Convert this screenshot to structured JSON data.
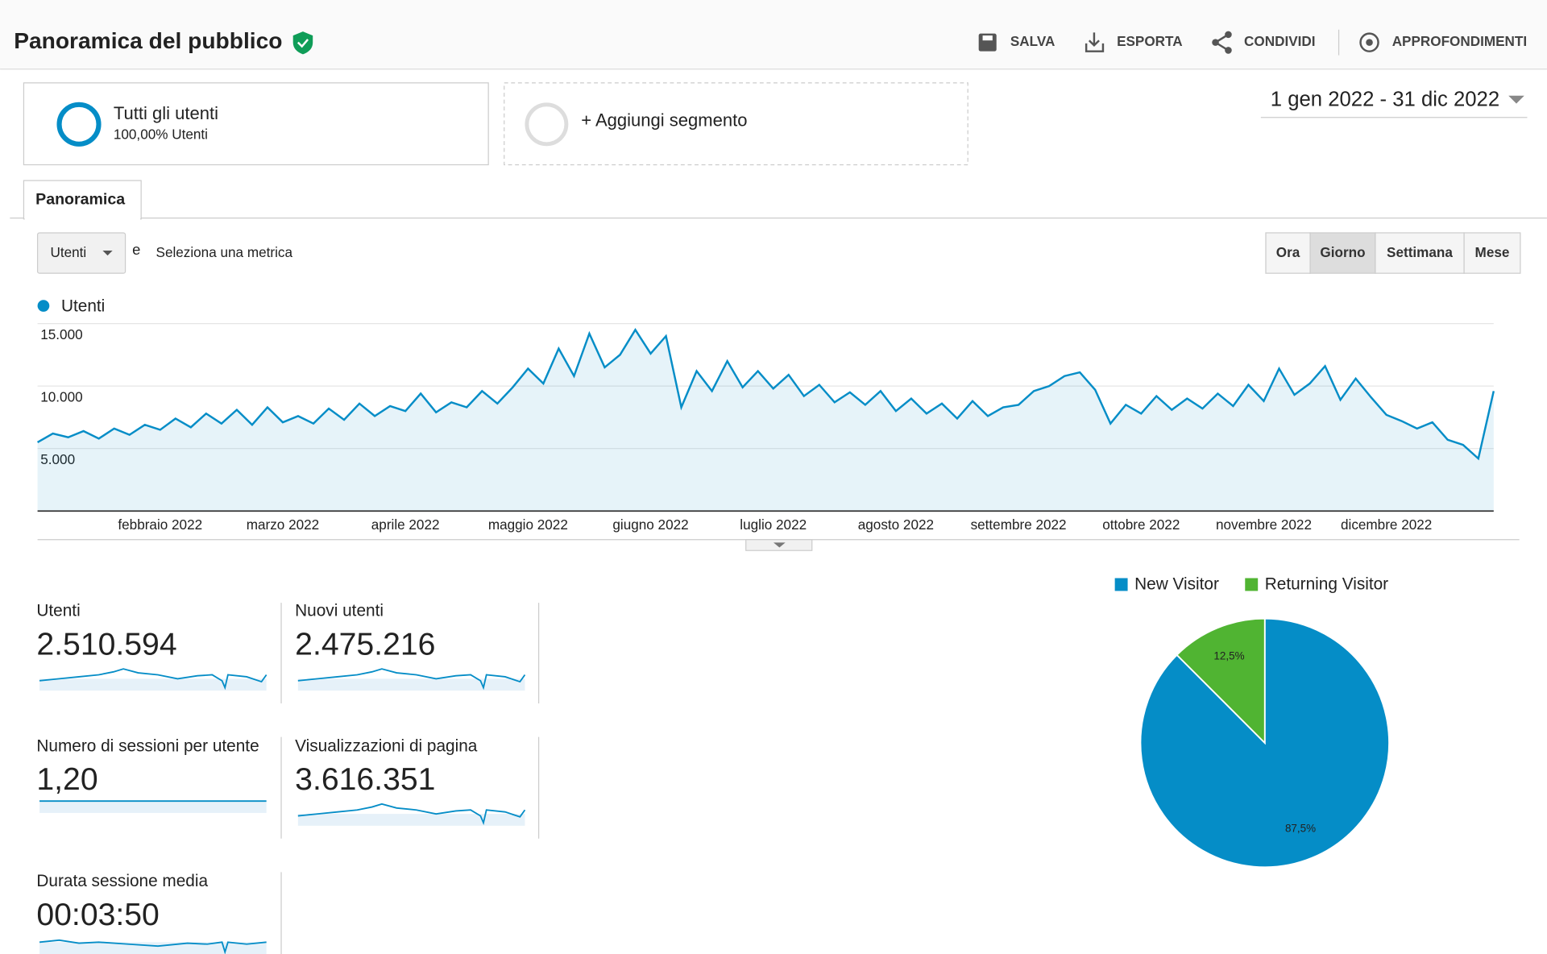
{
  "header": {
    "title": "Panoramica del pubblico",
    "actions": [
      "SALVA",
      "ESPORTA",
      "CONDIVIDI",
      "APPROFONDIMENTI"
    ]
  },
  "segments": {
    "active": {
      "name": "Tutti gli utenti",
      "detail": "100,00% Utenti"
    },
    "add": "+ Aggiungi segmento"
  },
  "date_range": "1 gen 2022 - 31 dic 2022",
  "tab": "Panoramica",
  "metric_selector": {
    "selected": "Utenti",
    "joiner": "e",
    "link": "Seleziona una metrica"
  },
  "granularity": {
    "options": [
      "Ora",
      "Giorno",
      "Settimana",
      "Mese"
    ],
    "selected": 1
  },
  "scorecards": [
    {
      "label": "Utenti",
      "value": "2.510.594"
    },
    {
      "label": "Nuovi utenti",
      "value": "2.475.216"
    },
    {
      "label": "Numero di sessioni per utente",
      "value": "1,20"
    },
    {
      "label": "Visualizzazioni di pagina",
      "value": "3.616.351"
    },
    {
      "label": "Durata sessione media",
      "value": "00:03:50"
    }
  ],
  "chart_data": [
    {
      "type": "line",
      "area": true,
      "grid": true,
      "categories": [
        null,
        null,
        null,
        null,
        null,
        null,
        null,
        null,
        "febbraio 2022",
        null,
        null,
        null,
        null,
        null,
        null,
        null,
        "marzo 2022",
        null,
        null,
        null,
        null,
        null,
        null,
        null,
        "aprile 2022",
        null,
        null,
        null,
        null,
        null,
        null,
        null,
        "maggio 2022",
        null,
        null,
        null,
        null,
        null,
        null,
        null,
        "giugno 2022",
        null,
        null,
        null,
        null,
        null,
        null,
        null,
        "luglio 2022",
        null,
        null,
        null,
        null,
        null,
        null,
        null,
        "agosto 2022",
        null,
        null,
        null,
        null,
        null,
        null,
        null,
        "settembre 2022",
        null,
        null,
        null,
        null,
        null,
        null,
        null,
        "ottobre 2022",
        null,
        null,
        null,
        null,
        null,
        null,
        null,
        "novembre 2022",
        null,
        null,
        null,
        null,
        null,
        null,
        null,
        "dicembre 2022",
        null,
        null,
        null,
        null,
        null,
        null,
        null
      ],
      "series": [
        {
          "name": "Utenti",
          "color": "#058dc7",
          "values": [
            5500,
            6200,
            5900,
            6400,
            5800,
            6600,
            6100,
            6900,
            6500,
            7400,
            6700,
            7800,
            7000,
            8100,
            6900,
            8300,
            7100,
            7600,
            7000,
            8200,
            7300,
            8600,
            7600,
            8400,
            8000,
            9400,
            7900,
            8700,
            8300,
            9600,
            8600,
            9900,
            11400,
            10200,
            13000,
            10800,
            14200,
            11500,
            12500,
            14500,
            12600,
            14000,
            8300,
            11200,
            9600,
            12000,
            9900,
            11200,
            9800,
            10900,
            9200,
            10100,
            8700,
            9500,
            8500,
            9600,
            8000,
            9000,
            7800,
            8600,
            7400,
            8800,
            7600,
            8300,
            8500,
            9600,
            10000,
            10800,
            11100,
            9700,
            7000,
            8500,
            7800,
            9200,
            8100,
            9000,
            8200,
            9400,
            8400,
            10100,
            8800,
            11400,
            9300,
            10200,
            11600,
            8900,
            10600,
            9100,
            7700,
            7200,
            6600,
            7100,
            5700,
            5300,
            4200,
            9600
          ]
        }
      ],
      "ylim": [
        0,
        15000
      ],
      "yticks": [
        {
          "value": 5000,
          "label": "5.000"
        },
        {
          "value": 10000,
          "label": "10.000"
        },
        {
          "value": 15000,
          "label": "15.000"
        }
      ]
    },
    {
      "type": "pie",
      "legend": "top",
      "categories": [
        "New Visitor",
        "Returning Visitor"
      ],
      "values": [
        87.5,
        12.5
      ],
      "value_labels": [
        "87,5%",
        "12,5%"
      ],
      "colors": [
        "#058dc7",
        "#50b432"
      ]
    }
  ]
}
